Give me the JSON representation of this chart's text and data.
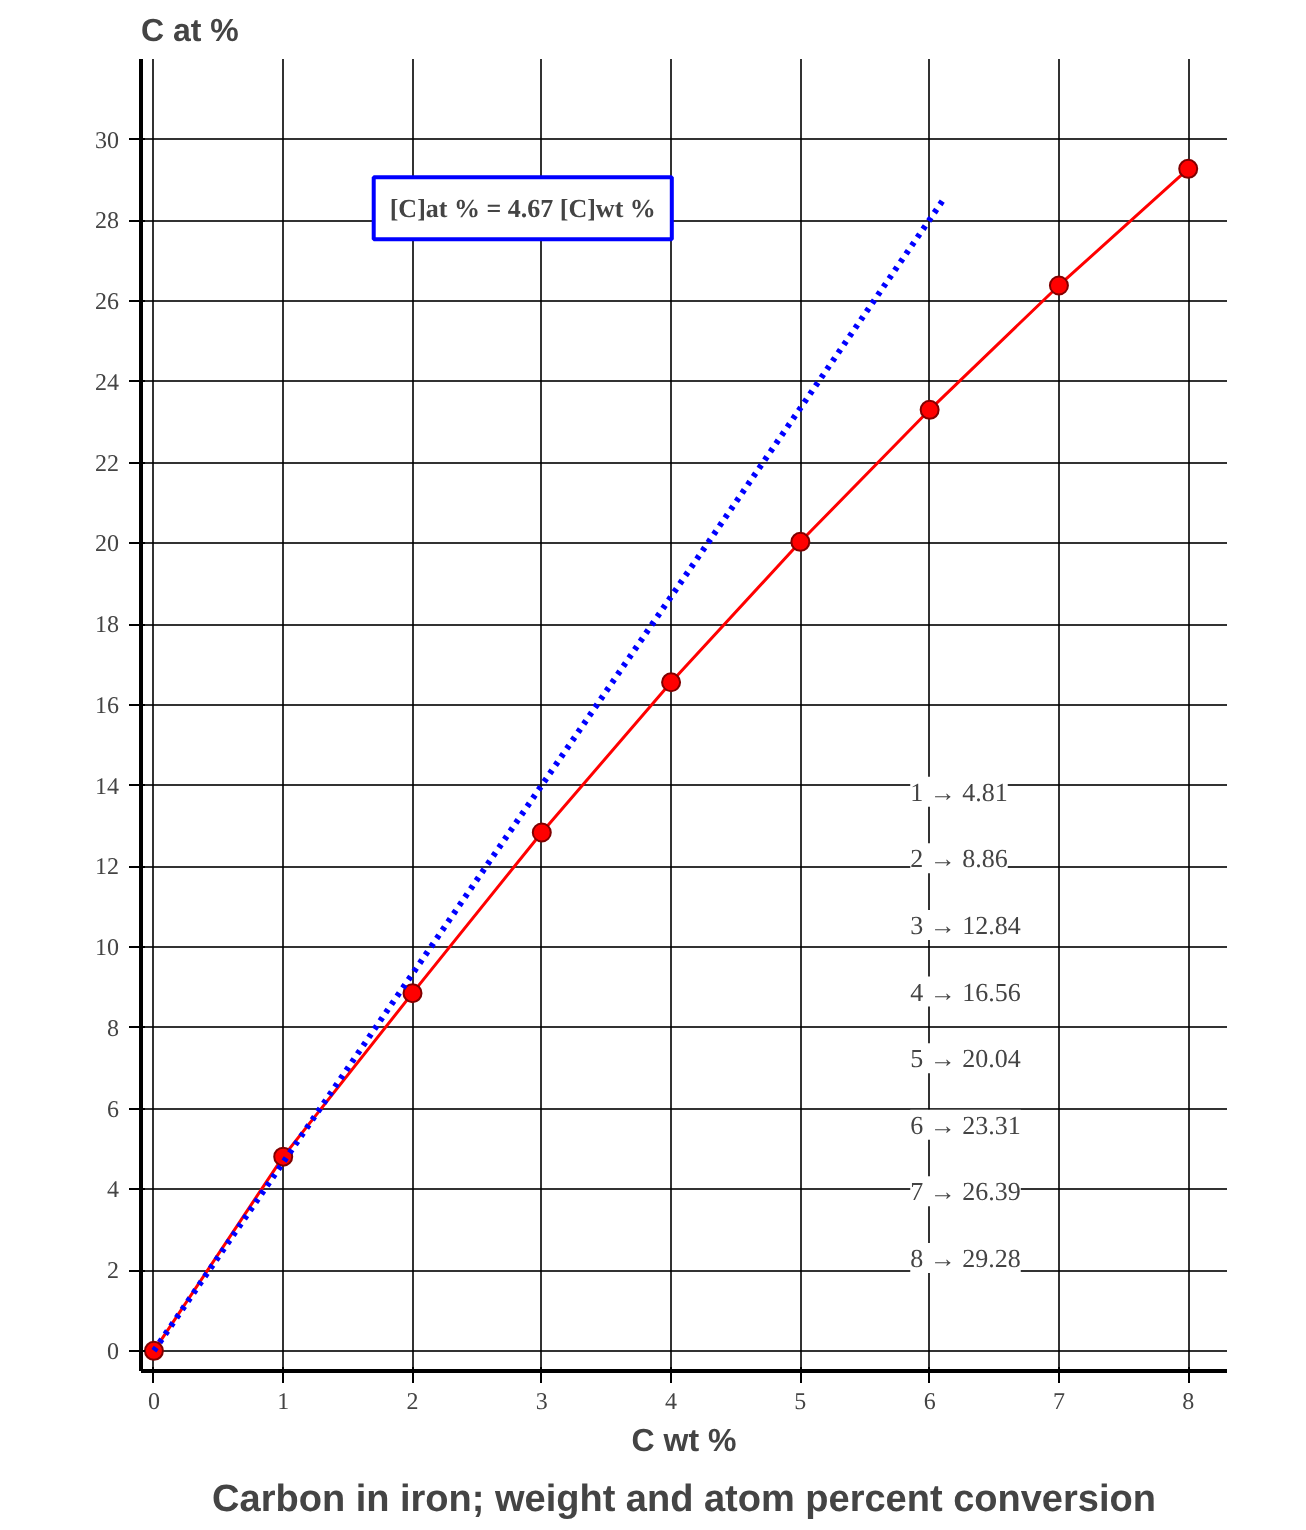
{
  "chart_data": {
    "type": "line",
    "title": "Carbon in iron; weight and atom percent conversion",
    "xlabel": "C wt %",
    "ylabel": "C at %",
    "annotations": [
      "[C]at % = 4.67 [C]wt %",
      "1 → 4.81",
      "2 → 8.86",
      "3 → 12.84",
      "4 → 16.56",
      "5 → 20.04",
      "6 → 23.31",
      "7 → 26.39",
      "8 → 29.28"
    ],
    "x": [
      0,
      1,
      2,
      3,
      4,
      5,
      6,
      7,
      8
    ],
    "series": [
      {
        "color": "#ff0000",
        "marker": "circle",
        "line_style": "solid",
        "values": [
          0,
          4.81,
          8.86,
          12.84,
          16.56,
          20.04,
          23.31,
          26.39,
          29.28
        ]
      },
      {
        "color": "#0000ff",
        "marker": "none",
        "line_style": "dotted",
        "x": [
          0,
          6.1
        ],
        "values": [
          0,
          28.49
        ]
      }
    ],
    "xlim": [
      -0.1,
      8.3
    ],
    "ylim": [
      -0.5,
      32
    ],
    "xticks": [
      0,
      1,
      2,
      3,
      4,
      5,
      6,
      7,
      8
    ],
    "yticks": [
      0,
      2,
      4,
      6,
      8,
      10,
      12,
      14,
      16,
      18,
      20,
      22,
      24,
      26,
      28,
      30
    ],
    "grid": true
  }
}
